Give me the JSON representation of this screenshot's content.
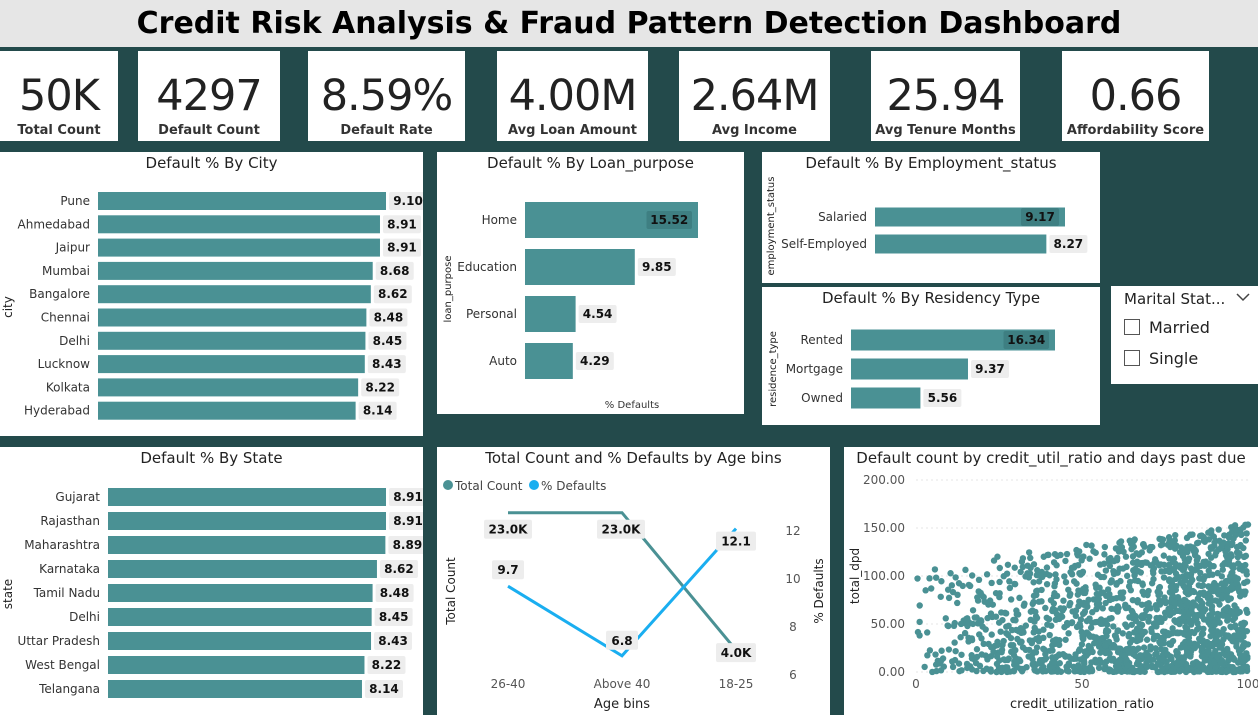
{
  "title": "Credit Risk Analysis & Fraud Pattern Detection Dashboard",
  "kpis": [
    {
      "value": "50K",
      "label": "Total Count"
    },
    {
      "value": "4297",
      "label": "Default Count"
    },
    {
      "value": "8.59%",
      "label": "Default Rate"
    },
    {
      "value": "4.00M",
      "label": "Avg Loan Amount"
    },
    {
      "value": "2.64M",
      "label": "Avg Income"
    },
    {
      "value": "25.94",
      "label": "Avg Tenure Months"
    },
    {
      "value": "0.66",
      "label": "Affordability Score"
    }
  ],
  "slicer": {
    "title": "Marital Stat...",
    "options": [
      "Married",
      "Single"
    ]
  },
  "colors": {
    "bar": "#4A9194",
    "line2": "#1AAEF0",
    "background": "#234A4B"
  },
  "chart_data": [
    {
      "type": "bar",
      "title": "Default % By City",
      "ylabel": "city",
      "categories": [
        "Pune",
        "Ahmedabad",
        "Jaipur",
        "Mumbai",
        "Bangalore",
        "Chennai",
        "Delhi",
        "Lucknow",
        "Kolkata",
        "Hyderabad"
      ],
      "values": [
        9.1,
        8.91,
        8.91,
        8.68,
        8.62,
        8.48,
        8.45,
        8.43,
        8.22,
        8.14
      ],
      "labels": [
        "9.10",
        "8.91",
        "8.91",
        "8.68",
        "8.62",
        "8.48",
        "8.45",
        "8.43",
        "8.22",
        "8.14"
      ]
    },
    {
      "type": "bar",
      "title": "Default % By Loan_purpose",
      "ylabel": "loan_purpose",
      "xlabel": "% Defaults",
      "categories": [
        "Home",
        "Education",
        "Personal",
        "Auto"
      ],
      "values": [
        15.52,
        9.85,
        4.54,
        4.29
      ],
      "labels": [
        "15.52",
        "9.85",
        "4.54",
        "4.29"
      ]
    },
    {
      "type": "bar",
      "title": "Default % By Employment_status",
      "ylabel": "employment_status",
      "categories": [
        "Salaried",
        "Self-Employed"
      ],
      "values": [
        9.17,
        8.27
      ],
      "labels": [
        "9.17",
        "8.27"
      ]
    },
    {
      "type": "bar",
      "title": "Default % By Residency Type",
      "ylabel": "residence_type",
      "categories": [
        "Rented",
        "Mortgage",
        "Owned"
      ],
      "values": [
        16.34,
        9.37,
        5.56
      ],
      "labels": [
        "16.34",
        "9.37",
        "5.56"
      ]
    },
    {
      "type": "bar",
      "title": "Default % By State",
      "ylabel": "state",
      "categories": [
        "Gujarat",
        "Rajasthan",
        "Maharashtra",
        "Karnataka",
        "Tamil Nadu",
        "Delhi",
        "Uttar Pradesh",
        "West Bengal",
        "Telangana"
      ],
      "values": [
        8.91,
        8.91,
        8.89,
        8.62,
        8.48,
        8.45,
        8.43,
        8.22,
        8.14
      ],
      "labels": [
        "8.91",
        "8.91",
        "8.89",
        "8.62",
        "8.48",
        "8.45",
        "8.43",
        "8.22",
        "8.14"
      ]
    },
    {
      "type": "line",
      "title": "Total Count and % Defaults by Age bins",
      "xlabel": "Age bins",
      "ylabel": "Total Count",
      "y2label": "% Defaults",
      "categories": [
        "26-40",
        "Above 40",
        "18-25"
      ],
      "series": [
        {
          "name": "Total Count",
          "values": [
            23000,
            23000,
            4000
          ],
          "labels": [
            "23.0K",
            "23.0K",
            "4.0K"
          ]
        },
        {
          "name": "% Defaults",
          "values": [
            9.7,
            6.8,
            12.1
          ],
          "labels": [
            "9.7",
            "6.8",
            "12.1"
          ]
        }
      ],
      "y2ticks": [
        "6",
        "8",
        "10",
        "12"
      ],
      "y2lim": [
        6,
        12.5
      ]
    },
    {
      "type": "scatter",
      "title": "Default count by credit_util_ratio and days past due",
      "xlabel": "credit_utilization_ratio",
      "ylabel": "total_dpd",
      "xlim": [
        0,
        100
      ],
      "ylim": [
        0,
        200
      ],
      "xticks": [
        "0",
        "50",
        "100"
      ],
      "yticks": [
        "0.00",
        "50.00",
        "100.00",
        "150.00",
        "200.00"
      ]
    }
  ]
}
